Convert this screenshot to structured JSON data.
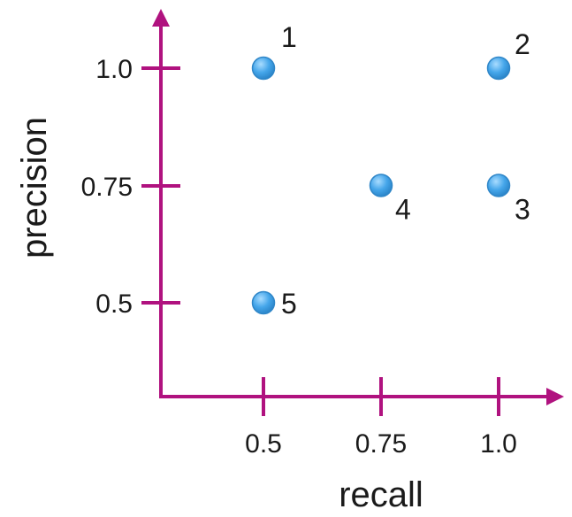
{
  "chart_data": {
    "type": "scatter",
    "xlabel": "recall",
    "ylabel": "precision",
    "x_ticks": [
      "0.5",
      "0.75",
      "1.0"
    ],
    "y_ticks": [
      "1.0",
      "0.75",
      "0.5"
    ],
    "points": [
      {
        "label": "1",
        "x": 0.5,
        "y": 1.0
      },
      {
        "label": "2",
        "x": 1.0,
        "y": 1.0
      },
      {
        "label": "3",
        "x": 1.0,
        "y": 0.75
      },
      {
        "label": "4",
        "x": 0.75,
        "y": 0.75
      },
      {
        "label": "5",
        "x": 0.5,
        "y": 0.5
      }
    ],
    "grid": false,
    "legend": "none",
    "colors": {
      "axis": "#b0127f",
      "point": "#45a6ea",
      "text": "#1a1a1a"
    }
  }
}
